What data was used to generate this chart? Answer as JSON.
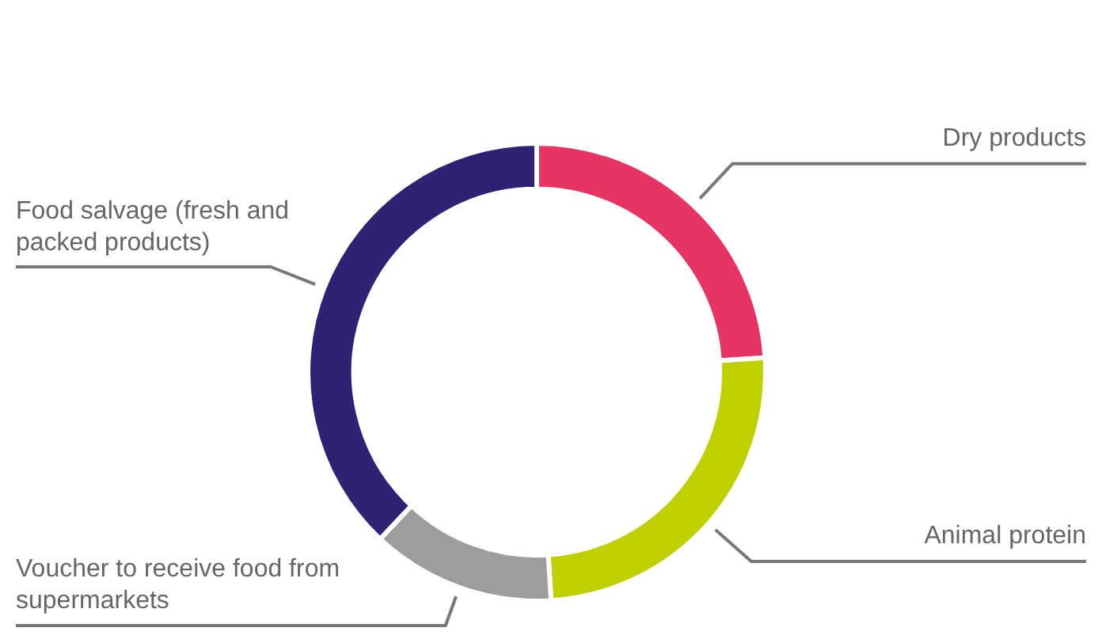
{
  "chart_data": {
    "type": "donut",
    "categories": [
      "Dry products",
      "Animal protein",
      "Voucher to receive food from supermarkets",
      "Food salvage (fresh and packed products)"
    ],
    "values": [
      24,
      25,
      13,
      38
    ],
    "colors": [
      "#e83462",
      "#bfd000",
      "#9d9d9d",
      "#2e2275"
    ]
  }
}
